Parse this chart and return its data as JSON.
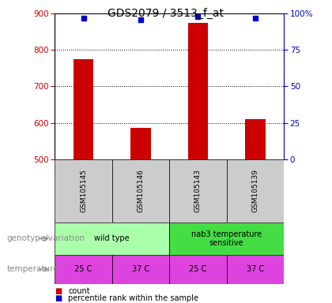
{
  "title": "GDS2079 / 3513_f_at",
  "samples": [
    "GSM105145",
    "GSM105146",
    "GSM105143",
    "GSM105139"
  ],
  "counts": [
    775,
    585,
    875,
    610
  ],
  "percentiles": [
    97,
    96,
    98,
    97
  ],
  "ylim_left": [
    500,
    900
  ],
  "ylim_right": [
    0,
    100
  ],
  "yticks_left": [
    500,
    600,
    700,
    800,
    900
  ],
  "yticks_right": [
    0,
    25,
    50,
    75,
    100
  ],
  "ytick_right_labels": [
    "0",
    "25",
    "50",
    "75",
    "100%"
  ],
  "bar_color": "#cc0000",
  "marker_color": "#0000cc",
  "bg_color": "#ffffff",
  "genotype_data": [
    [
      0,
      2,
      "wild type",
      "#aaffaa"
    ],
    [
      2,
      4,
      "nab3 temperature\nsensitive",
      "#44dd44"
    ]
  ],
  "temperature_labels": [
    "25 C",
    "37 C",
    "25 C",
    "37 C"
  ],
  "temperature_color": "#dd44dd",
  "sample_bg": "#cccccc",
  "label_fontsize": 7,
  "title_fontsize": 10,
  "tick_fontsize": 7.5,
  "row_label_fontsize": 7.5,
  "sample_fontsize": 6.5,
  "legend_fontsize": 7
}
